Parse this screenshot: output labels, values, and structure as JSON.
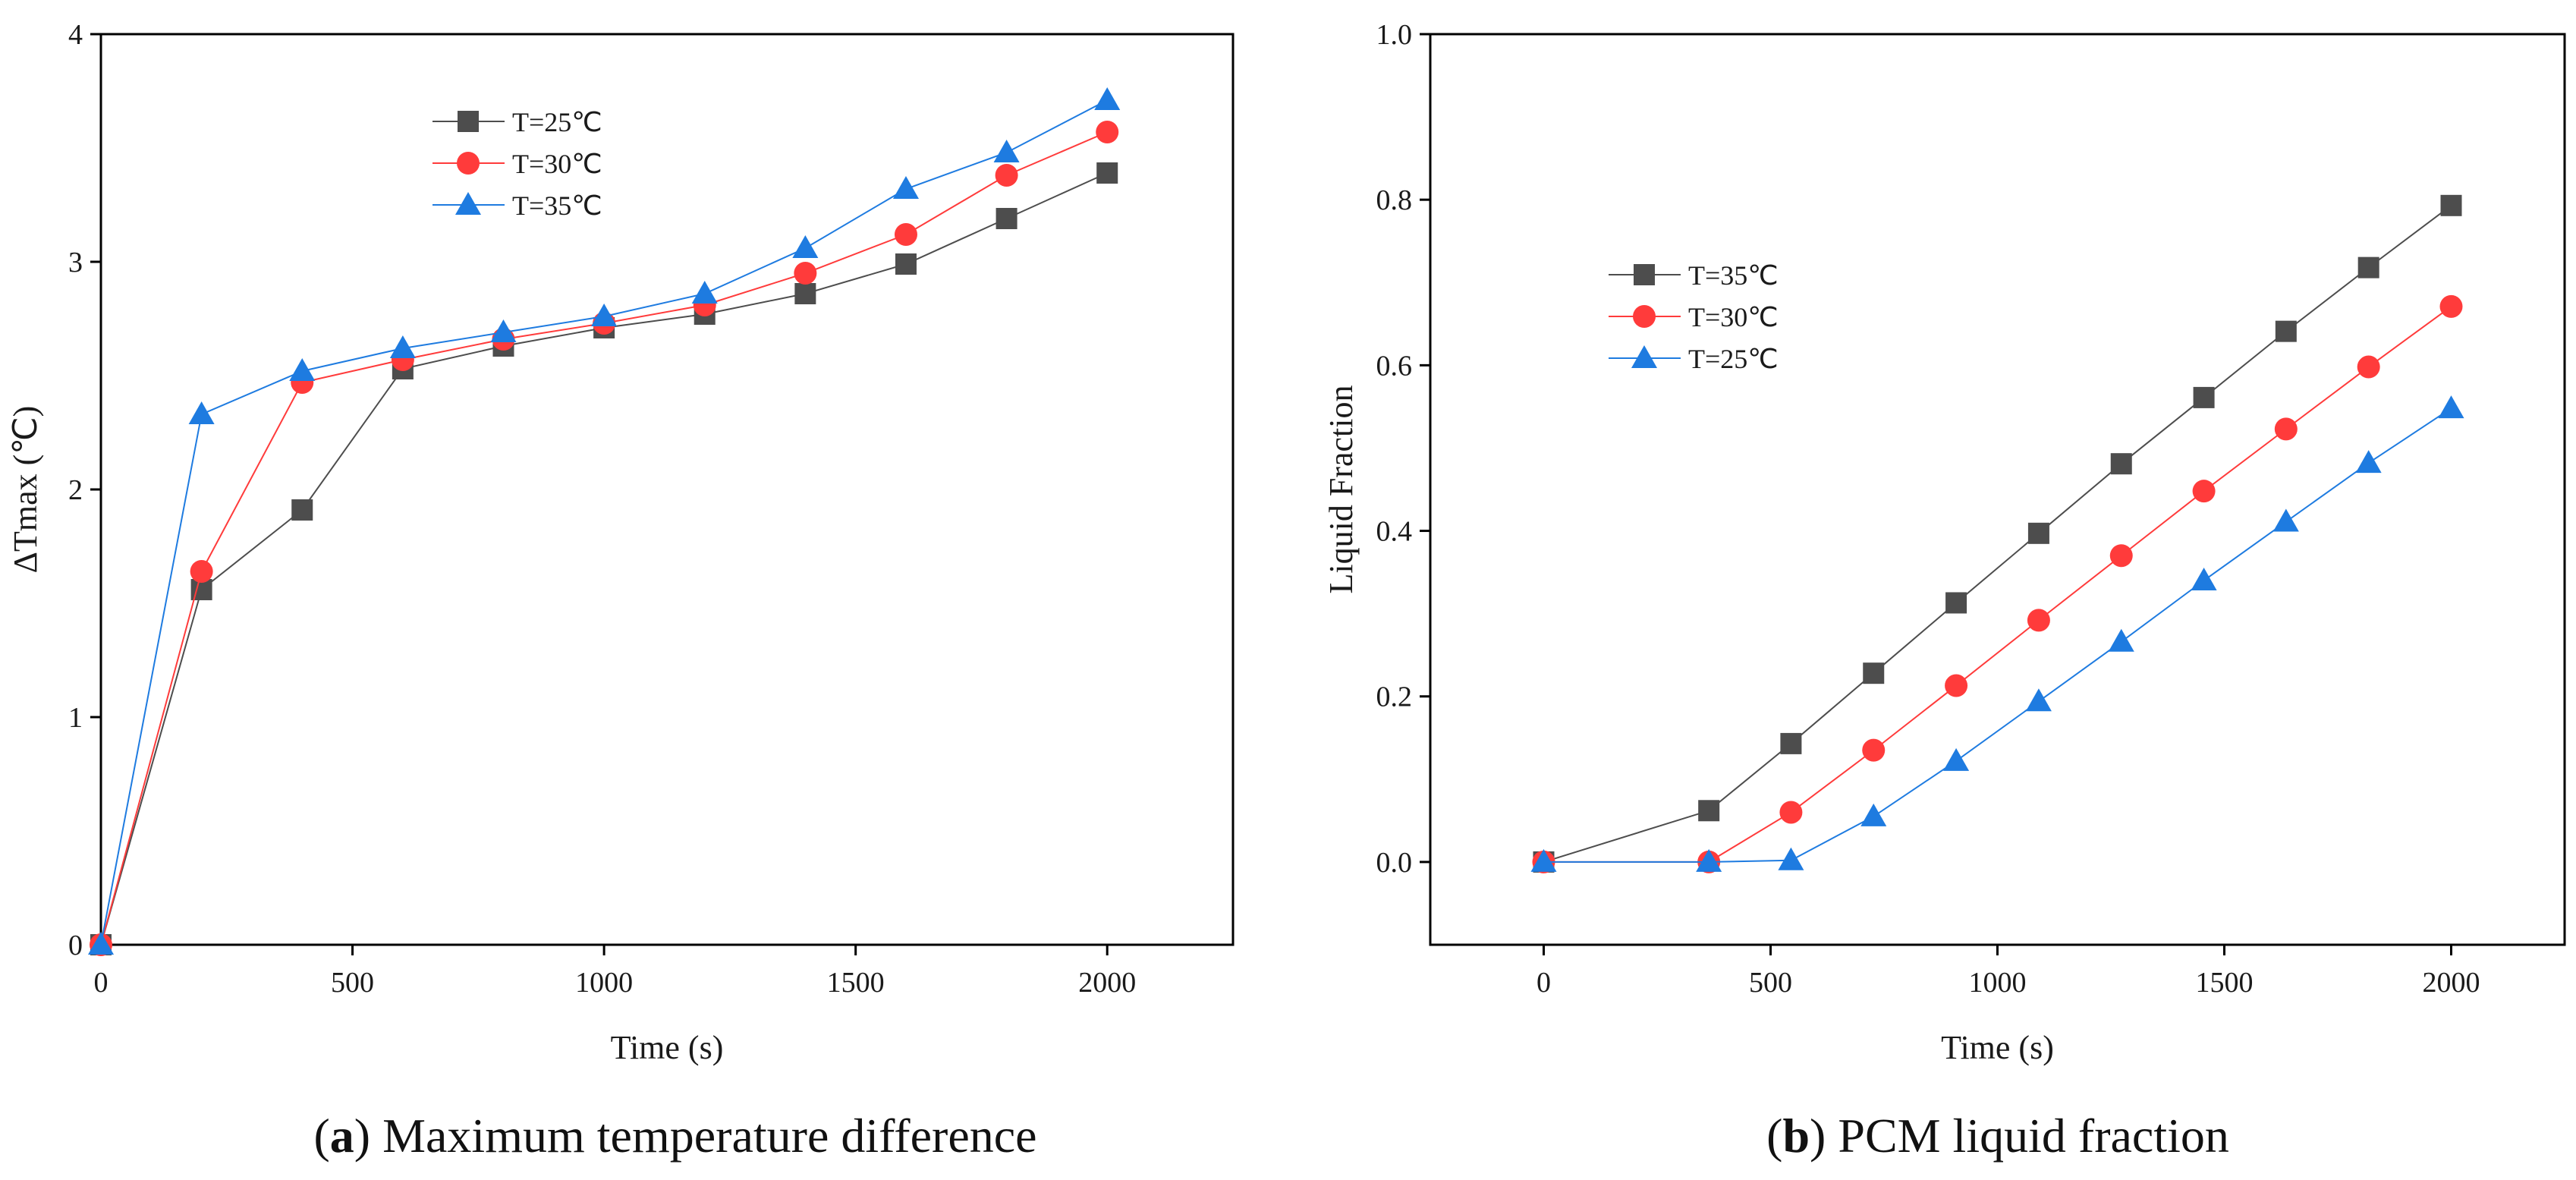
{
  "colors": {
    "gray": "#4d4d4d",
    "red": "#ff3b3b",
    "blue": "#1e7be0",
    "axis": "#000000"
  },
  "chart_data": [
    {
      "type": "line",
      "id": "a",
      "caption": {
        "letter": "a",
        "open": "(",
        "close": ")",
        "text": " Maximum temperature difference"
      },
      "xlabel": "Time (s)",
      "ylabel": "ΔTmax (℃)",
      "xlim": [
        0,
        2250
      ],
      "ylim": [
        0,
        4
      ],
      "xticks": [
        0,
        500,
        1000,
        1500,
        2000
      ],
      "yticks": [
        0,
        1,
        2,
        3,
        4
      ],
      "xtick_labels": [
        "0",
        "500",
        "1000",
        "1500",
        "2000"
      ],
      "ytick_labels": [
        "0",
        "1",
        "2",
        "3",
        "4"
      ],
      "legend_position": "top-left",
      "series": [
        {
          "name": "T=25℃",
          "color_key": "gray",
          "marker": "square",
          "x": [
            0,
            200,
            400,
            600,
            800,
            1000,
            1200,
            1400,
            1600,
            1800,
            2000
          ],
          "y": [
            0,
            1.56,
            1.91,
            2.53,
            2.63,
            2.71,
            2.77,
            2.86,
            2.99,
            3.19,
            3.39
          ]
        },
        {
          "name": "T=30℃",
          "color_key": "red",
          "marker": "circle",
          "x": [
            0,
            200,
            400,
            600,
            800,
            1000,
            1200,
            1400,
            1600,
            1800,
            2000
          ],
          "y": [
            0,
            1.64,
            2.47,
            2.57,
            2.66,
            2.73,
            2.81,
            2.95,
            3.12,
            3.38,
            3.57
          ]
        },
        {
          "name": "T=35℃",
          "color_key": "blue",
          "marker": "triangle",
          "x": [
            0,
            200,
            400,
            600,
            800,
            1000,
            1200,
            1400,
            1600,
            1800,
            2000
          ],
          "y": [
            0,
            2.33,
            2.52,
            2.62,
            2.69,
            2.76,
            2.86,
            3.06,
            3.32,
            3.48,
            3.71
          ]
        }
      ]
    },
    {
      "type": "line",
      "id": "b",
      "caption": {
        "letter": "b",
        "open": "(",
        "close": ")",
        "text": " PCM liquid fraction"
      },
      "xlabel": "Time (s)",
      "ylabel": "Liquid Fraction",
      "xlim": [
        -250,
        2250
      ],
      "ylim": [
        -0.1,
        1.0
      ],
      "xticks": [
        0,
        500,
        1000,
        1500,
        2000
      ],
      "yticks": [
        0.0,
        0.2,
        0.4,
        0.6,
        0.8,
        1.0
      ],
      "xtick_labels": [
        "0",
        "500",
        "1000",
        "1500",
        "2000"
      ],
      "ytick_labels": [
        "0.0",
        "0.2",
        "0.4",
        "0.6",
        "0.8",
        "1.0"
      ],
      "legend_position": "upper-left",
      "series": [
        {
          "name": "T=35℃",
          "color_key": "gray",
          "marker": "square",
          "x": [
            0,
            364,
            545,
            727,
            909,
            1091,
            1273,
            1455,
            1636,
            1818,
            2000
          ],
          "y": [
            0.0,
            0.062,
            0.143,
            0.228,
            0.313,
            0.397,
            0.481,
            0.561,
            0.641,
            0.718,
            0.793
          ]
        },
        {
          "name": "T=30℃",
          "color_key": "red",
          "marker": "circle",
          "x": [
            0,
            364,
            545,
            727,
            909,
            1091,
            1273,
            1455,
            1636,
            1818,
            2000
          ],
          "y": [
            0.0,
            0.0,
            0.06,
            0.135,
            0.213,
            0.292,
            0.37,
            0.448,
            0.523,
            0.598,
            0.671
          ]
        },
        {
          "name": "T=25℃",
          "color_key": "blue",
          "marker": "triangle",
          "x": [
            0,
            364,
            545,
            727,
            909,
            1091,
            1273,
            1455,
            1636,
            1818,
            2000
          ],
          "y": [
            0.0,
            0.0,
            0.002,
            0.055,
            0.122,
            0.194,
            0.266,
            0.34,
            0.411,
            0.482,
            0.548
          ]
        }
      ]
    }
  ]
}
